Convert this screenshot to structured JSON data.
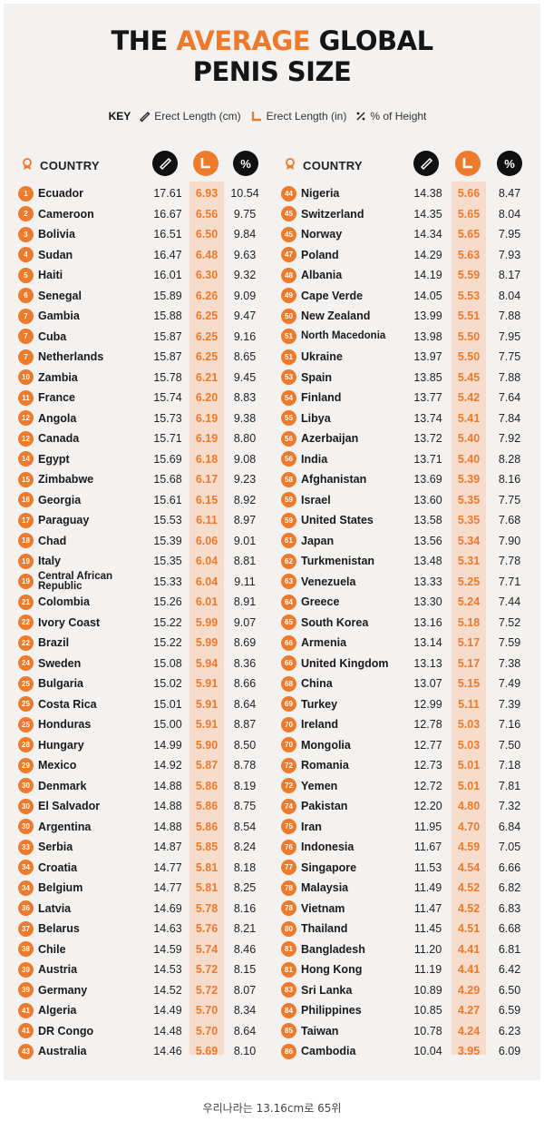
{
  "title": {
    "part1": "THE ",
    "accent": "AVERAGE",
    "part2": " GLOBAL",
    "line2": "PENIS SIZE"
  },
  "key": {
    "label": "KEY",
    "cm": "Erect Length (cm)",
    "in": "Erect Length (in)",
    "pct": "% of Height"
  },
  "header": {
    "country": "COUNTRY",
    "pct_symbol": "%"
  },
  "colors": {
    "accent": "#ee7a2c",
    "band": "#f7dccb",
    "background": "#f4f2f0"
  },
  "left_rows": [
    {
      "rank": "1",
      "country": "Ecuador",
      "cm": "17.61",
      "in": "6.93",
      "pct": "10.54"
    },
    {
      "rank": "2",
      "country": "Cameroon",
      "cm": "16.67",
      "in": "6.56",
      "pct": "9.75"
    },
    {
      "rank": "3",
      "country": "Bolivia",
      "cm": "16.51",
      "in": "6.50",
      "pct": "9.84"
    },
    {
      "rank": "4",
      "country": "Sudan",
      "cm": "16.47",
      "in": "6.48",
      "pct": "9.63"
    },
    {
      "rank": "5",
      "country": "Haiti",
      "cm": "16.01",
      "in": "6.30",
      "pct": "9.32"
    },
    {
      "rank": "6",
      "country": "Senegal",
      "cm": "15.89",
      "in": "6.26",
      "pct": "9.09"
    },
    {
      "rank": "7",
      "country": "Gambia",
      "cm": "15.88",
      "in": "6.25",
      "pct": "9.47"
    },
    {
      "rank": "7",
      "country": "Cuba",
      "cm": "15.87",
      "in": "6.25",
      "pct": "9.16"
    },
    {
      "rank": "7",
      "country": "Netherlands",
      "cm": "15.87",
      "in": "6.25",
      "pct": "8.65"
    },
    {
      "rank": "10",
      "country": "Zambia",
      "cm": "15.78",
      "in": "6.21",
      "pct": "9.45"
    },
    {
      "rank": "11",
      "country": "France",
      "cm": "15.74",
      "in": "6.20",
      "pct": "8.83"
    },
    {
      "rank": "12",
      "country": "Angola",
      "cm": "15.73",
      "in": "6.19",
      "pct": "9.38"
    },
    {
      "rank": "12",
      "country": "Canada",
      "cm": "15.71",
      "in": "6.19",
      "pct": "8.80"
    },
    {
      "rank": "14",
      "country": "Egypt",
      "cm": "15.69",
      "in": "6.18",
      "pct": "9.08"
    },
    {
      "rank": "15",
      "country": "Zimbabwe",
      "cm": "15.68",
      "in": "6.17",
      "pct": "9.23"
    },
    {
      "rank": "16",
      "country": "Georgia",
      "cm": "15.61",
      "in": "6.15",
      "pct": "8.92"
    },
    {
      "rank": "17",
      "country": "Paraguay",
      "cm": "15.53",
      "in": "6.11",
      "pct": "8.97"
    },
    {
      "rank": "18",
      "country": "Chad",
      "cm": "15.39",
      "in": "6.06",
      "pct": "9.01"
    },
    {
      "rank": "19",
      "country": "Italy",
      "cm": "15.35",
      "in": "6.04",
      "pct": "8.81"
    },
    {
      "rank": "19",
      "country": "Central African Republic",
      "cm": "15.33",
      "in": "6.04",
      "pct": "9.11",
      "small": true
    },
    {
      "rank": "21",
      "country": "Colombia",
      "cm": "15.26",
      "in": "6.01",
      "pct": "8.91"
    },
    {
      "rank": "22",
      "country": "Ivory Coast",
      "cm": "15.22",
      "in": "5.99",
      "pct": "9.07"
    },
    {
      "rank": "22",
      "country": "Brazil",
      "cm": "15.22",
      "in": "5.99",
      "pct": "8.69"
    },
    {
      "rank": "24",
      "country": "Sweden",
      "cm": "15.08",
      "in": "5.94",
      "pct": "8.36"
    },
    {
      "rank": "25",
      "country": "Bulgaria",
      "cm": "15.02",
      "in": "5.91",
      "pct": "8.66"
    },
    {
      "rank": "25",
      "country": "Costa Rica",
      "cm": "15.01",
      "in": "5.91",
      "pct": "8.64"
    },
    {
      "rank": "25",
      "country": "Honduras",
      "cm": "15.00",
      "in": "5.91",
      "pct": "8.87"
    },
    {
      "rank": "28",
      "country": "Hungary",
      "cm": "14.99",
      "in": "5.90",
      "pct": "8.50"
    },
    {
      "rank": "29",
      "country": "Mexico",
      "cm": "14.92",
      "in": "5.87",
      "pct": "8.78"
    },
    {
      "rank": "30",
      "country": "Denmark",
      "cm": "14.88",
      "in": "5.86",
      "pct": "8.19"
    },
    {
      "rank": "30",
      "country": "El Salvador",
      "cm": "14.88",
      "in": "5.86",
      "pct": "8.75"
    },
    {
      "rank": "30",
      "country": "Argentina",
      "cm": "14.88",
      "in": "5.86",
      "pct": "8.54"
    },
    {
      "rank": "33",
      "country": "Serbia",
      "cm": "14.87",
      "in": "5.85",
      "pct": "8.24"
    },
    {
      "rank": "34",
      "country": "Croatia",
      "cm": "14.77",
      "in": "5.81",
      "pct": "8.18"
    },
    {
      "rank": "34",
      "country": "Belgium",
      "cm": "14.77",
      "in": "5.81",
      "pct": "8.25"
    },
    {
      "rank": "36",
      "country": "Latvia",
      "cm": "14.69",
      "in": "5.78",
      "pct": "8.16"
    },
    {
      "rank": "37",
      "country": "Belarus",
      "cm": "14.63",
      "in": "5.76",
      "pct": "8.21"
    },
    {
      "rank": "38",
      "country": "Chile",
      "cm": "14.59",
      "in": "5.74",
      "pct": "8.46"
    },
    {
      "rank": "39",
      "country": "Austria",
      "cm": "14.53",
      "in": "5.72",
      "pct": "8.15"
    },
    {
      "rank": "39",
      "country": "Germany",
      "cm": "14.52",
      "in": "5.72",
      "pct": "8.07"
    },
    {
      "rank": "41",
      "country": "Algeria",
      "cm": "14.49",
      "in": "5.70",
      "pct": "8.34"
    },
    {
      "rank": "41",
      "country": "DR Congo",
      "cm": "14.48",
      "in": "5.70",
      "pct": "8.64"
    },
    {
      "rank": "43",
      "country": "Australia",
      "cm": "14.46",
      "in": "5.69",
      "pct": "8.10"
    }
  ],
  "right_rows": [
    {
      "rank": "44",
      "country": "Nigeria",
      "cm": "14.38",
      "in": "5.66",
      "pct": "8.47"
    },
    {
      "rank": "45",
      "country": "Switzerland",
      "cm": "14.35",
      "in": "5.65",
      "pct": "8.04"
    },
    {
      "rank": "45",
      "country": "Norway",
      "cm": "14.34",
      "in": "5.65",
      "pct": "7.95"
    },
    {
      "rank": "47",
      "country": "Poland",
      "cm": "14.29",
      "in": "5.63",
      "pct": "7.93"
    },
    {
      "rank": "48",
      "country": "Albania",
      "cm": "14.19",
      "in": "5.59",
      "pct": "8.17"
    },
    {
      "rank": "49",
      "country": "Cape Verde",
      "cm": "14.05",
      "in": "5.53",
      "pct": "8.04"
    },
    {
      "rank": "50",
      "country": "New Zealand",
      "cm": "13.99",
      "in": "5.51",
      "pct": "7.88"
    },
    {
      "rank": "51",
      "country": "North Macedonia",
      "cm": "13.98",
      "in": "5.50",
      "pct": "7.95",
      "small": true
    },
    {
      "rank": "51",
      "country": "Ukraine",
      "cm": "13.97",
      "in": "5.50",
      "pct": "7.75"
    },
    {
      "rank": "53",
      "country": "Spain",
      "cm": "13.85",
      "in": "5.45",
      "pct": "7.88"
    },
    {
      "rank": "54",
      "country": "Finland",
      "cm": "13.77",
      "in": "5.42",
      "pct": "7.64"
    },
    {
      "rank": "55",
      "country": "Libya",
      "cm": "13.74",
      "in": "5.41",
      "pct": "7.84"
    },
    {
      "rank": "56",
      "country": "Azerbaijan",
      "cm": "13.72",
      "in": "5.40",
      "pct": "7.92"
    },
    {
      "rank": "56",
      "country": "India",
      "cm": "13.71",
      "in": "5.40",
      "pct": "8.28"
    },
    {
      "rank": "58",
      "country": "Afghanistan",
      "cm": "13.69",
      "in": "5.39",
      "pct": "8.16"
    },
    {
      "rank": "59",
      "country": "Israel",
      "cm": "13.60",
      "in": "5.35",
      "pct": "7.75"
    },
    {
      "rank": "59",
      "country": "United States",
      "cm": "13.58",
      "in": "5.35",
      "pct": "7.68"
    },
    {
      "rank": "61",
      "country": "Japan",
      "cm": "13.56",
      "in": "5.34",
      "pct": "7.90"
    },
    {
      "rank": "62",
      "country": "Turkmenistan",
      "cm": "13.48",
      "in": "5.31",
      "pct": "7.78"
    },
    {
      "rank": "63",
      "country": "Venezuela",
      "cm": "13.33",
      "in": "5.25",
      "pct": "7.71"
    },
    {
      "rank": "64",
      "country": "Greece",
      "cm": "13.30",
      "in": "5.24",
      "pct": "7.44"
    },
    {
      "rank": "65",
      "country": "South Korea",
      "cm": "13.16",
      "in": "5.18",
      "pct": "7.52"
    },
    {
      "rank": "66",
      "country": "Armenia",
      "cm": "13.14",
      "in": "5.17",
      "pct": "7.59"
    },
    {
      "rank": "66",
      "country": "United Kingdom",
      "cm": "13.13",
      "in": "5.17",
      "pct": "7.38"
    },
    {
      "rank": "68",
      "country": "China",
      "cm": "13.07",
      "in": "5.15",
      "pct": "7.49"
    },
    {
      "rank": "69",
      "country": "Turkey",
      "cm": "12.99",
      "in": "5.11",
      "pct": "7.39"
    },
    {
      "rank": "70",
      "country": "Ireland",
      "cm": "12.78",
      "in": "5.03",
      "pct": "7.16"
    },
    {
      "rank": "70",
      "country": "Mongolia",
      "cm": "12.77",
      "in": "5.03",
      "pct": "7.50"
    },
    {
      "rank": "72",
      "country": "Romania",
      "cm": "12.73",
      "in": "5.01",
      "pct": "7.18"
    },
    {
      "rank": "72",
      "country": "Yemen",
      "cm": "12.72",
      "in": "5.01",
      "pct": "7.81"
    },
    {
      "rank": "74",
      "country": "Pakistan",
      "cm": "12.20",
      "in": "4.80",
      "pct": "7.32"
    },
    {
      "rank": "75",
      "country": "Iran",
      "cm": "11.95",
      "in": "4.70",
      "pct": "6.84"
    },
    {
      "rank": "76",
      "country": "Indonesia",
      "cm": "11.67",
      "in": "4.59",
      "pct": "7.05"
    },
    {
      "rank": "77",
      "country": "Singapore",
      "cm": "11.53",
      "in": "4.54",
      "pct": "6.66"
    },
    {
      "rank": "78",
      "country": "Malaysia",
      "cm": "11.49",
      "in": "4.52",
      "pct": "6.82"
    },
    {
      "rank": "78",
      "country": "Vietnam",
      "cm": "11.47",
      "in": "4.52",
      "pct": "6.83"
    },
    {
      "rank": "80",
      "country": "Thailand",
      "cm": "11.45",
      "in": "4.51",
      "pct": "6.68"
    },
    {
      "rank": "81",
      "country": "Bangladesh",
      "cm": "11.20",
      "in": "4.41",
      "pct": "6.81"
    },
    {
      "rank": "81",
      "country": "Hong Kong",
      "cm": "11.19",
      "in": "4.41",
      "pct": "6.42"
    },
    {
      "rank": "83",
      "country": "Sri Lanka",
      "cm": "10.89",
      "in": "4.29",
      "pct": "6.50"
    },
    {
      "rank": "84",
      "country": "Philippines",
      "cm": "10.85",
      "in": "4.27",
      "pct": "6.59"
    },
    {
      "rank": "85",
      "country": "Taiwan",
      "cm": "10.78",
      "in": "4.24",
      "pct": "6.23"
    },
    {
      "rank": "86",
      "country": "Cambodia",
      "cm": "10.04",
      "in": "3.95",
      "pct": "6.09"
    }
  ],
  "caption": "우리나라는 13.16cm로 65위"
}
